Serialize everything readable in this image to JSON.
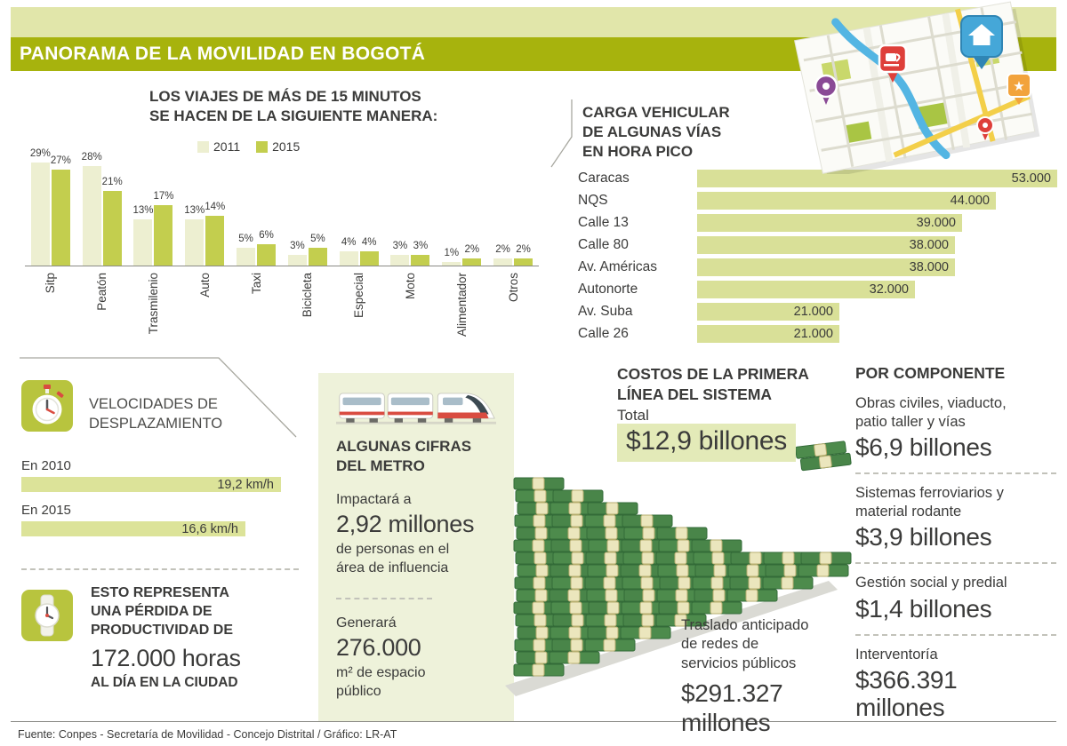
{
  "header": {
    "title": "PANORAMA DE LA MOVILIDAD EN BOGOTÁ"
  },
  "colors": {
    "olive_band": "#a7b30d",
    "pale_band": "#e1e6aa",
    "bar_2011": "#edefd1",
    "bar_2015": "#c3ce4e",
    "horizontal_bar": "#d9e098",
    "panel_bg": "#eef2da",
    "money_green": "#4d8b4c",
    "accent_red": "#d94c41",
    "text": "#3b3b3a"
  },
  "chart_data": [
    {
      "id": "trips_by_mode",
      "type": "bar",
      "title_lines": [
        "LOS VIAJES DE MÁS DE 15 MINUTOS",
        "SE HACEN DE LA SIGUIENTE MANERA:"
      ],
      "unit": "%",
      "categories": [
        "Sitp",
        "Peatón",
        "Trasmilenio",
        "Auto",
        "Taxi",
        "Bicicleta",
        "Especial",
        "Moto",
        "Alimentador",
        "Otros"
      ],
      "series": [
        {
          "name": "2011",
          "values": [
            29,
            28,
            13,
            13,
            5,
            3,
            4,
            3,
            1,
            2
          ]
        },
        {
          "name": "2015",
          "values": [
            27,
            21,
            17,
            14,
            6,
            5,
            4,
            3,
            2,
            2
          ]
        }
      ],
      "ylim": [
        0,
        30
      ],
      "legend_position": "top",
      "grid": false
    },
    {
      "id": "vehicle_load_peak_hour",
      "type": "bar-horizontal",
      "title_lines": [
        "CARGA VEHICULAR",
        "DE ALGUNAS VÍAS",
        "EN HORA PICO"
      ],
      "categories": [
        "Caracas",
        "NQS",
        "Calle 13",
        "Calle 80",
        "Av. Américas",
        "Autonorte",
        "Av. Suba",
        "Calle 26"
      ],
      "values": [
        53000,
        44000,
        39000,
        38000,
        38000,
        32000,
        21000,
        21000
      ],
      "value_labels": [
        "53.000",
        "44.000",
        "39.000",
        "38.000",
        "38.000",
        "32.000",
        "21.000",
        "21.000"
      ]
    },
    {
      "id": "travel_speeds",
      "type": "bar-horizontal",
      "title_lines": [
        "VELOCIDADES DE",
        "DESPLAZAMIENTO"
      ],
      "categories": [
        "En 2010",
        "En 2015"
      ],
      "values": [
        19.2,
        16.6
      ],
      "unit": "km/h",
      "value_labels": [
        "19,2 km/h",
        "16,6 km/h"
      ]
    }
  ],
  "productivity": {
    "lines": [
      "ESTO REPRESENTA",
      "UNA PÉRDIDA DE",
      "PRODUCTIVIDAD DE"
    ],
    "big": "172.000 horas",
    "tail": "AL DÍA EN LA CIUDAD"
  },
  "metro": {
    "title_lines": [
      "ALGUNAS CIFRAS",
      "DEL METRO"
    ],
    "fact1": {
      "lead": "Impactará a",
      "big": "2,92 millones",
      "desc_lines": [
        "de personas en el",
        "área de influencia"
      ]
    },
    "fact2": {
      "lead": "Generará",
      "big": "276.000",
      "desc_lines": [
        "m² de espacio",
        "público"
      ]
    }
  },
  "costs": {
    "title_lines": [
      "COSTOS DE LA PRIMERA",
      "LÍNEA DEL SISTEMA"
    ],
    "total_label": "Total",
    "total_value": "$12,9 billones",
    "transfer": {
      "desc_lines": [
        "Traslado anticipado",
        "de redes de",
        "servicios públicos"
      ],
      "value_lines": [
        "$291.327",
        "millones"
      ]
    }
  },
  "components": {
    "title": "POR COMPONENTE",
    "items": [
      {
        "desc_lines": [
          "Obras civiles, viaducto,",
          "patio taller y vías"
        ],
        "value_lines": [
          "$6,9 billones"
        ]
      },
      {
        "desc_lines": [
          "Sistemas ferroviarios y",
          "material rodante"
        ],
        "value_lines": [
          "$3,9 billones"
        ]
      },
      {
        "desc_lines": [
          "Gestión social y predial"
        ],
        "value_lines": [
          "$1,4 billones"
        ]
      },
      {
        "desc_lines": [
          "Interventoría"
        ],
        "value_lines": [
          "$366.391",
          "millones"
        ]
      }
    ]
  },
  "icons": {
    "speed_section": "stopwatch-icon",
    "productivity_section": "wristwatch-icon",
    "metro_section": "metro-train-illustration",
    "costs_section": "money-stacks-illustration",
    "header_map": "city-map-with-pins-illustration"
  },
  "footer": {
    "text": "Fuente:  Conpes - Secretaría de Movilidad - Concejo Distrital / Gráfico: LR-AT"
  }
}
